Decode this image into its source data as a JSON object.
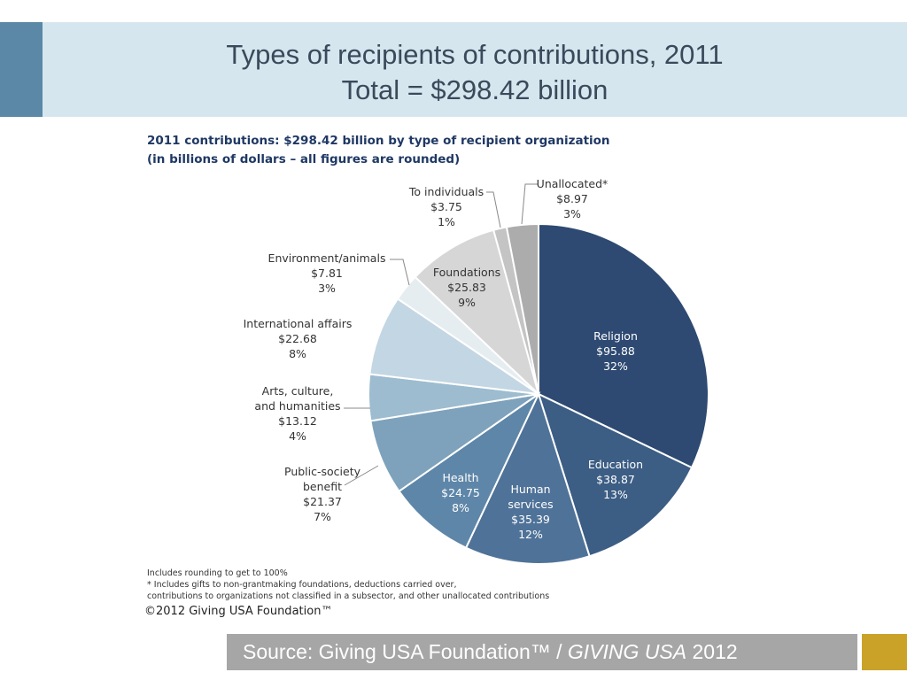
{
  "slide": {
    "title_line1": "Types of recipients of contributions, 2011",
    "title_line2": "Total = $298.42 billion"
  },
  "chart_heading": {
    "line1": "2011 contributions: $298.42 billion by type of recipient organization",
    "line2": "(in billions of dollars – all figures are rounded)"
  },
  "notes": {
    "line1": "Includes rounding to get to 100%",
    "line2": "* Includes gifts to non-grantmaking foundations, deductions carried over,",
    "line3": "contributions to organizations not classified in a subsector, and other unallocated contributions"
  },
  "copyright": "©2012 Giving USA Foundation™",
  "source": {
    "prefix": "Source: Giving USA Foundation™ / ",
    "italic": "GIVING USA",
    "suffix": " 2012"
  },
  "colors": {
    "title_band": "#d6e6ef",
    "title_accent": "#5a88a6",
    "source_bar": "#a6a6a6",
    "source_accent": "#c9a227"
  },
  "chart_data": {
    "type": "pie",
    "title": "2011 contributions: $298.42 billion by type of recipient organization",
    "subtitle": "(in billions of dollars – all figures are rounded)",
    "total": 298.42,
    "slices": [
      {
        "label": [
          "Religion"
        ],
        "value_label": "$95.88",
        "pct_label": "32%",
        "value": 95.88,
        "color": "#2e4a72",
        "text_color": "#ffffff"
      },
      {
        "label": [
          "Education"
        ],
        "value_label": "$38.87",
        "pct_label": "13%",
        "value": 38.87,
        "color": "#3c5d84",
        "text_color": "#ffffff"
      },
      {
        "label": [
          "Human",
          "services"
        ],
        "value_label": "$35.39",
        "pct_label": "12%",
        "value": 35.39,
        "color": "#4f7298",
        "text_color": "#ffffff"
      },
      {
        "label": [
          "Health"
        ],
        "value_label": "$24.75",
        "pct_label": "8%",
        "value": 24.75,
        "color": "#5e86a8",
        "text_color": "#ffffff"
      },
      {
        "label": [
          "Public-society",
          "benefit"
        ],
        "value_label": "$21.37",
        "pct_label": "7%",
        "value": 21.37,
        "color": "#7ea2bc",
        "text_color": "#333333"
      },
      {
        "label": [
          "Arts, culture,",
          "and humanities"
        ],
        "value_label": "$13.12",
        "pct_label": "4%",
        "value": 13.12,
        "color": "#9dbccf",
        "text_color": "#333333"
      },
      {
        "label": [
          "International affairs"
        ],
        "value_label": "$22.68",
        "pct_label": "8%",
        "value": 22.68,
        "color": "#c3d6e3",
        "text_color": "#333333"
      },
      {
        "label": [
          "Environment/animals"
        ],
        "value_label": "$7.81",
        "pct_label": "3%",
        "value": 7.81,
        "color": "#e6edf1",
        "text_color": "#333333"
      },
      {
        "label": [
          "Foundations"
        ],
        "value_label": "$25.83",
        "pct_label": "9%",
        "value": 25.83,
        "color": "#d6d6d6",
        "text_color": "#333333"
      },
      {
        "label": [
          "To individuals"
        ],
        "value_label": "$3.75",
        "pct_label": "1%",
        "value": 3.75,
        "color": "#c4c4c4",
        "text_color": "#333333"
      },
      {
        "label": [
          "Unallocated*"
        ],
        "value_label": "$8.97",
        "pct_label": "3%",
        "value": 8.97,
        "color": "#acacac",
        "text_color": "#333333"
      }
    ]
  }
}
